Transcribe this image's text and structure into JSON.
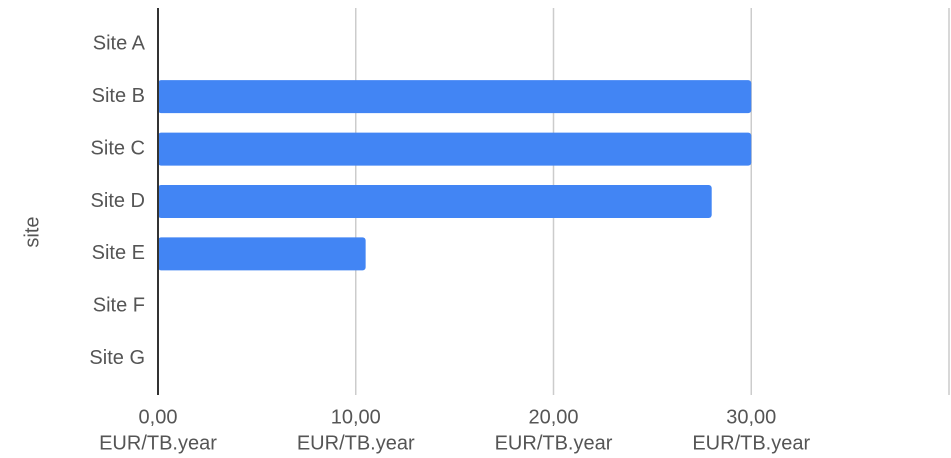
{
  "chart_data": {
    "type": "bar",
    "orientation": "horizontal",
    "y_axis_label": "site",
    "categories": [
      "Site A",
      "Site B",
      "Site C",
      "Site D",
      "Site E",
      "Site F",
      "Site G"
    ],
    "values": [
      null,
      30,
      30,
      28,
      10.5,
      null,
      null
    ],
    "color": "#4285f4",
    "xlim": [
      0,
      40
    ],
    "xticks": [
      {
        "value": 0,
        "label": "0,00"
      },
      {
        "value": 10,
        "label": "10,00"
      },
      {
        "value": 20,
        "label": "20,00"
      },
      {
        "value": 30,
        "label": "30,00"
      }
    ],
    "xtick_unit": "EUR/TB.year",
    "grid": true
  }
}
